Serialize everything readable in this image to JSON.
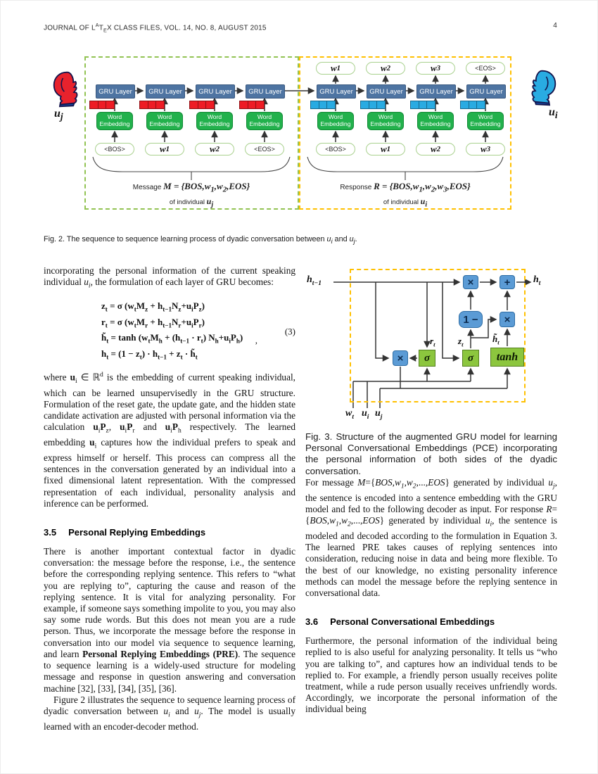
{
  "header": {
    "journal": "JOURNAL OF L^{A}T_{E}X CLASS FILES, VOL. 14, NO. 8, AUGUST 2015",
    "page": "4"
  },
  "fig2": {
    "gru_label": "GRU Layer",
    "embed_label": "Word Embedding",
    "left_person_label": "u_j",
    "right_person_label": "u_i",
    "encoder": {
      "tokens": [
        "<BOS>",
        "w_1",
        "w_2",
        "<EOS>"
      ],
      "brace_prefix": "Message",
      "brace_math": "M = {BOS,w_1,w_2,EOS}",
      "owner": "of individual *u_j*"
    },
    "decoder": {
      "outputs": [
        "w_1",
        "w_2",
        "w_3",
        "<EOS>"
      ],
      "tokens": [
        "<BOS>",
        "w_1",
        "w_2",
        "w_3"
      ],
      "brace_prefix": "Response",
      "brace_math": "R = {BOS,w_1,w_2,w_3,EOS}",
      "owner": "of individual *u_i*"
    },
    "caption": "Fig. 2. The sequence to sequence learning process of dyadic conversation between *u_i* and *u_j*."
  },
  "left_column": {
    "para1": "incorporating the personal information of the current speaking individual *u_i*, the formulation of each layer of GRU becomes:",
    "equation": {
      "lines": [
        "z_t = σ (w_tM_z + h_{t−1}N_z+u_iP_z)",
        "r_t = σ (w_tM_r + h_{t−1}N_r+u_iP_r)",
        "h̃_t = tanh (w_tM_h + (h_{t−1} · r_t) N_h+u_iP_h)",
        "h_t = (1 − z_t) · h_{t−1} + z_t · h̃_t"
      ],
      "comma": ",",
      "number": "(3)"
    },
    "para2": "where **u**_i ∈ ℝ^d is the embedding of current speaking individual, which can be learned unsupervisedly in the GRU structure. Formulation of the reset gate, the update gate, and the hidden state candidate activation are adjusted with personal information via the calculation **u**_i**P**_z, **u**_i**P**_r and **u**_i**P**_h respectively. The learned embedding **u**_i captures how the individual prefers to speak and express himself or herself. This process can compress all the sentences in the conversation generated by an individual into a fixed dimensional latent representation. With the compressed representation of each individual, personality analysis and inference can be performed.",
    "section": {
      "number": "3.5",
      "title": "Personal Replying Embeddings"
    },
    "para3": "There is another important contextual factor in dyadic conversation: the message before the response, i.e., the sentence before the corresponding replying sentence. This refers to “what you are replying to”, capturing the cause and reason of the replying sentence. It is vital for analyzing personality. For example, if someone says something impolite to you, you may also say some rude words. But this does not mean you are a rude person. Thus, we incorporate the message before the response in conversation into our model via sequence to sequence learning, and learn **Personal Replying Embeddings (PRE)**. The sequence to sequence learning is a widely-used structure for modeling message and response in question answering and conversation machine [32], [33], [34], [35], [36].",
    "para4": "Figure 2 illustrates the sequence to sequence learning process of dyadic conversation between *u_i* and *u_j*. The model is usually learned with an encoder-decoder method."
  },
  "right_column": {
    "fig3": {
      "h_prev": "h_{t−1}",
      "h_out": "h_t",
      "mul": "×",
      "add": "+",
      "one_minus": "1 −",
      "sigma": "σ",
      "tanh": "tanh",
      "r_label": "r_t",
      "z_label": "z_t",
      "h_tilde_label": "h̃_t",
      "w_label": "w_t",
      "ui_label": "u_i",
      "uj_label": "u_j",
      "caption": "Fig. 3. Structure of the augmented GRU model for learning Personal Conversational Embeddings (PCE) incorporating the personal information of both sides of the dyadic conversation."
    },
    "para1": "For message *M*={*BOS*,*w_1*,*w_2*,...,*EOS*} generated by individual *u_j*, the sentence is encoded into a sentence embedding with the GRU model and fed to the following decoder as input. For response *R*={*BOS*,*w_1*,*w_2*,...,*EOS*} generated by individual *u_i*, the sentence is modeled and decoded according to the formulation in Equation 3. The learned PRE takes causes of replying sentences into consideration, reducing noise in data and being more flexible. To the best of our knowledge, no existing personality inference methods can model the message before the replying sentence in conversational data.",
    "section": {
      "number": "3.6",
      "title": "Personal Conversational Embeddings"
    },
    "para2": "Furthermore, the personal information of the individual being replied to is also useful for analyzing personality. It tells us “who you are talking to”, and captures how an individual tends to be replied to. For example, a friendly person usually receives polite treatment, while a rude person usually receives unfriendly words. Accordingly, we incorporate the personal information of the individual being"
  },
  "colors": {
    "gru_box": "#4e74a2",
    "gru_border": "#36567e",
    "embed_box": "#22b14c",
    "embed_border": "#128a36",
    "token_border": "#a9d18e",
    "encoder_strip": "#ee1c25",
    "encoder_strip_border": "#8e1014",
    "decoder_strip": "#29abe2",
    "decoder_strip_border": "#17678c",
    "encoder_dash": "#92c353",
    "decoder_dash": "#ffc000",
    "fig3_dash": "#ffc000",
    "fig3_blue": "#5b9bd5",
    "fig3_blue_border": "#2e6da4",
    "fig3_green": "#8cc63e",
    "fig3_green_border": "#54801f",
    "person_red": "#e8222d",
    "person_blue": "#29abe2"
  }
}
